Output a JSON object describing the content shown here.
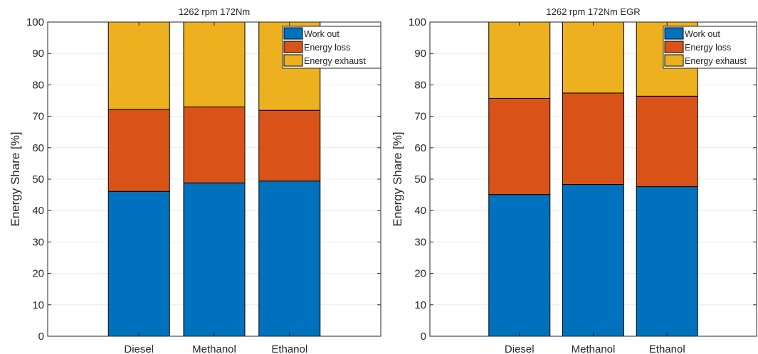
{
  "chart_data": [
    {
      "type": "bar",
      "stacked": true,
      "title": "1262 rpm 172Nm",
      "xlabel": "",
      "ylabel": "Energy Share [%]",
      "ylim": [
        0,
        100
      ],
      "yticks": [
        "0",
        "10",
        "20",
        "30",
        "40",
        "50",
        "60",
        "70",
        "80",
        "90",
        "100"
      ],
      "grid": true,
      "legend_position": "top-right",
      "categories": [
        "Diesel",
        "Methanol",
        "Ethanol"
      ],
      "series": [
        {
          "name": "Work out",
          "color": "#0072BD",
          "values": [
            46.1,
            48.8,
            49.4
          ]
        },
        {
          "name": "Energy loss",
          "color": "#D95319",
          "values": [
            26.1,
            24.2,
            22.5
          ]
        },
        {
          "name": "Energy exhaust",
          "color": "#EDB120",
          "values": [
            27.8,
            27.0,
            28.1
          ]
        }
      ]
    },
    {
      "type": "bar",
      "stacked": true,
      "title": "1262 rpm 172Nm EGR",
      "xlabel": "",
      "ylabel": "Energy Share [%]",
      "ylim": [
        0,
        100
      ],
      "yticks": [
        "0",
        "10",
        "20",
        "30",
        "40",
        "50",
        "60",
        "70",
        "80",
        "90",
        "100"
      ],
      "grid": true,
      "legend_position": "top-right",
      "categories": [
        "Diesel",
        "Methanol",
        "Ethanol"
      ],
      "series": [
        {
          "name": "Work out",
          "color": "#0072BD",
          "values": [
            45.1,
            48.3,
            47.6
          ]
        },
        {
          "name": "Energy loss",
          "color": "#D95319",
          "values": [
            30.6,
            29.1,
            28.8
          ]
        },
        {
          "name": "Energy exhaust",
          "color": "#EDB120",
          "values": [
            24.3,
            22.6,
            23.6
          ]
        }
      ]
    }
  ]
}
